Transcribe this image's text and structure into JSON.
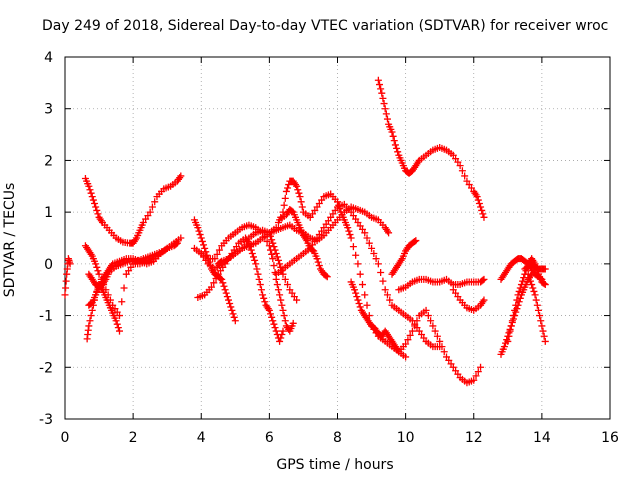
{
  "chart_data": {
    "type": "scatter",
    "title": "Day 249 of 2018, Sidereal Day-to-day VTEC variation (SDTVAR) for receiver wroc",
    "xlabel": "GPS time / hours",
    "ylabel": "SDTVAR / TECUs",
    "xlim": [
      0,
      16
    ],
    "ylim": [
      -3,
      4
    ],
    "xticks": [
      "0",
      "2",
      "4",
      "6",
      "8",
      "10",
      "12",
      "14",
      "16"
    ],
    "yticks": [
      "-3",
      "-2",
      "-1",
      "0",
      "1",
      "2",
      "3",
      "4"
    ],
    "grid": true,
    "marker": "+",
    "color": "#ff0000",
    "series": [
      {
        "x": [
          0.0,
          0.05,
          0.1,
          0.15
        ],
        "y": [
          -0.6,
          -0.2,
          0.1,
          0.0
        ]
      },
      {
        "x": [
          0.6,
          0.7,
          0.8,
          0.9,
          1.0,
          1.1,
          1.3,
          1.5,
          1.7,
          1.9,
          2.0,
          2.1,
          2.2,
          2.3,
          2.5,
          2.7,
          2.9,
          3.1,
          3.3,
          3.4
        ],
        "y": [
          1.65,
          1.5,
          1.3,
          1.1,
          0.9,
          0.8,
          0.65,
          0.5,
          0.42,
          0.4,
          0.4,
          0.5,
          0.65,
          0.8,
          1.0,
          1.3,
          1.45,
          1.5,
          1.6,
          1.7
        ]
      },
      {
        "x": [
          0.6,
          0.7,
          0.8,
          0.9,
          1.0,
          1.2,
          1.4,
          1.6,
          1.8,
          2.0,
          2.2,
          2.4,
          2.6,
          2.8,
          3.0,
          3.2,
          3.4
        ],
        "y": [
          0.35,
          0.25,
          0.15,
          0.0,
          -0.2,
          -0.5,
          -0.8,
          -1.0,
          -0.2,
          0.0,
          0.0,
          0.05,
          0.1,
          0.2,
          0.3,
          0.4,
          0.5
        ]
      },
      {
        "x": [
          0.65,
          0.7,
          0.8,
          0.9,
          1.0,
          1.1,
          1.2,
          1.3,
          1.4,
          1.5,
          1.6
        ],
        "y": [
          -1.45,
          -1.2,
          -0.9,
          -0.6,
          -0.4,
          -0.5,
          -0.65,
          -0.8,
          -0.95,
          -1.1,
          -1.3
        ]
      },
      {
        "x": [
          0.7,
          0.8,
          0.9,
          1.0,
          1.1,
          1.2,
          1.3,
          1.4,
          1.6,
          1.8,
          2.0,
          2.2,
          2.4,
          2.6,
          2.8,
          3.0,
          3.2,
          3.3
        ],
        "y": [
          -0.8,
          -0.75,
          -0.6,
          -0.45,
          -0.3,
          -0.2,
          -0.1,
          0.0,
          0.05,
          0.1,
          0.1,
          0.05,
          0.0,
          0.05,
          0.2,
          0.3,
          0.35,
          0.4
        ]
      },
      {
        "x": [
          0.7,
          0.8,
          0.9,
          1.0,
          1.1,
          1.2,
          1.3,
          1.5,
          1.7,
          1.9,
          2.1,
          2.3,
          2.5,
          2.7,
          2.9,
          3.0
        ],
        "y": [
          -0.2,
          -0.3,
          -0.4,
          -0.45,
          -0.4,
          -0.3,
          -0.15,
          -0.05,
          0.0,
          0.05,
          0.05,
          0.1,
          0.15,
          0.2,
          0.25,
          0.3
        ]
      },
      {
        "x": [
          3.8,
          3.9,
          4.0,
          4.1,
          4.2,
          4.3,
          4.4,
          4.5,
          4.6,
          4.7,
          4.8,
          4.9,
          5.0
        ],
        "y": [
          0.85,
          0.7,
          0.5,
          0.3,
          0.1,
          -0.1,
          -0.2,
          -0.25,
          -0.3,
          -0.5,
          -0.7,
          -0.9,
          -1.1
        ]
      },
      {
        "x": [
          3.8,
          4.0,
          4.2,
          4.4,
          4.6,
          4.8,
          5.0,
          5.2,
          5.4,
          5.6,
          5.8,
          6.0,
          6.1,
          6.2,
          6.3,
          6.4,
          6.6,
          6.8
        ],
        "y": [
          0.3,
          0.2,
          0.0,
          -0.1,
          0.0,
          0.1,
          0.2,
          0.3,
          0.5,
          0.6,
          0.65,
          0.6,
          0.4,
          0.2,
          0.0,
          -0.2,
          -0.5,
          -0.7
        ]
      },
      {
        "x": [
          3.9,
          4.1,
          4.3,
          4.5,
          4.7,
          4.9,
          5.1,
          5.3,
          5.4,
          5.5,
          5.6,
          5.7,
          5.8,
          5.9,
          6.0,
          6.1,
          6.2,
          6.3,
          6.4
        ],
        "y": [
          -0.65,
          -0.6,
          -0.45,
          -0.2,
          0.0,
          0.2,
          0.4,
          0.5,
          0.4,
          0.2,
          0.0,
          -0.3,
          -0.6,
          -0.8,
          -0.9,
          -1.1,
          -1.3,
          -1.5,
          -1.3
        ]
      },
      {
        "x": [
          4.0,
          4.2,
          4.4,
          4.6,
          4.8,
          5.0,
          5.2,
          5.4,
          5.6,
          5.8,
          6.0,
          6.1,
          6.2,
          6.3,
          6.4,
          6.5,
          6.6,
          6.7
        ],
        "y": [
          0.2,
          0.1,
          0.1,
          0.35,
          0.5,
          0.6,
          0.7,
          0.75,
          0.7,
          0.6,
          0.35,
          0.1,
          -0.3,
          -0.6,
          -0.9,
          -1.2,
          -1.3,
          -1.15
        ]
      },
      {
        "x": [
          4.5,
          4.6,
          4.8,
          5.0,
          5.2,
          5.4,
          5.6,
          5.8,
          6.0,
          6.2,
          6.4,
          6.6,
          6.8,
          7.0,
          7.2,
          7.4,
          7.6,
          7.8,
          8.0,
          8.2,
          8.4,
          8.6,
          8.8,
          9.0,
          9.2,
          9.4,
          9.5
        ],
        "y": [
          0.0,
          0.05,
          0.1,
          0.2,
          0.3,
          0.35,
          0.4,
          0.5,
          0.6,
          0.65,
          0.7,
          0.75,
          0.65,
          0.6,
          0.5,
          0.45,
          0.55,
          0.7,
          0.85,
          1.0,
          1.1,
          1.05,
          1.0,
          0.9,
          0.85,
          0.7,
          0.6
        ]
      },
      {
        "x": [
          6.0,
          6.2,
          6.4,
          6.5,
          6.6,
          6.7,
          6.8,
          6.9,
          7.0,
          7.2,
          7.4,
          7.6,
          7.8,
          8.0,
          8.1,
          8.2,
          8.3,
          8.4,
          8.6,
          8.8,
          9.0,
          9.2,
          9.4,
          9.6,
          9.8,
          10.0
        ],
        "y": [
          0.6,
          0.7,
          1.0,
          1.4,
          1.6,
          1.6,
          1.5,
          1.3,
          1.0,
          0.9,
          1.1,
          1.3,
          1.35,
          1.2,
          1.0,
          0.85,
          0.7,
          0.5,
          0.0,
          -0.6,
          -1.2,
          -1.4,
          -1.5,
          -1.6,
          -1.7,
          -1.8
        ]
      },
      {
        "x": [
          6.3,
          6.5,
          6.6,
          6.7,
          6.8,
          6.9,
          7.0,
          7.1,
          7.2,
          7.3,
          7.4,
          7.5,
          7.6,
          7.7
        ],
        "y": [
          0.85,
          0.95,
          1.05,
          1.0,
          0.85,
          0.7,
          0.55,
          0.45,
          0.3,
          0.25,
          0.1,
          -0.1,
          -0.2,
          -0.25
        ]
      },
      {
        "x": [
          6.2,
          6.4,
          6.6,
          6.8,
          7.0,
          7.2,
          7.4,
          7.6,
          7.8,
          8.0,
          8.2,
          8.4,
          8.6,
          8.8,
          9.0,
          9.2,
          9.4,
          9.6,
          9.8,
          10.0,
          10.2,
          10.4,
          10.6,
          10.8,
          11.0
        ],
        "y": [
          -0.2,
          -0.1,
          0.0,
          0.1,
          0.2,
          0.3,
          0.5,
          0.7,
          0.9,
          1.1,
          1.15,
          1.0,
          0.8,
          0.6,
          0.3,
          0.0,
          -0.5,
          -0.8,
          -0.9,
          -1.0,
          -1.1,
          -1.3,
          -1.5,
          -1.6,
          -1.6
        ]
      },
      {
        "x": [
          8.4,
          8.5,
          8.6,
          8.7,
          8.8,
          8.9,
          9.0,
          9.1,
          9.2,
          9.3,
          9.4,
          9.5,
          9.6,
          9.7,
          9.8,
          10.0,
          10.2,
          10.4,
          10.6,
          10.8,
          11.0,
          11.2,
          11.4,
          11.6,
          11.8,
          12.0,
          12.2
        ],
        "y": [
          -0.35,
          -0.5,
          -0.7,
          -0.9,
          -1.0,
          -1.1,
          -1.2,
          -1.25,
          -1.35,
          -1.4,
          -1.3,
          -1.4,
          -1.5,
          -1.6,
          -1.7,
          -1.55,
          -1.3,
          -1.0,
          -0.9,
          -1.2,
          -1.5,
          -1.8,
          -2.0,
          -2.2,
          -2.3,
          -2.25,
          -2.0
        ]
      },
      {
        "x": [
          9.2,
          9.3,
          9.4,
          9.5,
          9.6,
          9.7,
          9.8,
          9.9,
          10.0,
          10.1,
          10.2,
          10.3,
          10.4,
          10.6,
          10.8,
          11.0,
          11.2,
          11.4,
          11.6,
          11.8,
          12.0,
          12.1,
          12.2,
          12.3
        ],
        "y": [
          3.55,
          3.3,
          3.0,
          2.7,
          2.55,
          2.3,
          2.1,
          1.95,
          1.8,
          1.75,
          1.8,
          1.9,
          2.0,
          2.1,
          2.2,
          2.25,
          2.2,
          2.1,
          1.9,
          1.6,
          1.4,
          1.3,
          1.1,
          0.9
        ]
      },
      {
        "x": [
          9.6,
          9.7,
          9.8,
          9.9,
          10.0,
          10.1,
          10.2,
          10.3
        ],
        "y": [
          -0.2,
          -0.1,
          0.0,
          0.1,
          0.25,
          0.35,
          0.4,
          0.45
        ]
      },
      {
        "x": [
          9.8,
          10.0,
          10.2,
          10.4,
          10.6,
          10.8,
          11.0,
          11.2,
          11.4,
          11.6,
          11.8,
          12.0,
          12.2,
          12.3
        ],
        "y": [
          -0.5,
          -0.45,
          -0.35,
          -0.3,
          -0.3,
          -0.35,
          -0.35,
          -0.3,
          -0.4,
          -0.4,
          -0.35,
          -0.35,
          -0.35,
          -0.3
        ]
      },
      {
        "x": [
          11.4,
          11.6,
          11.8,
          12.0,
          12.2,
          12.3
        ],
        "y": [
          -0.5,
          -0.7,
          -0.85,
          -0.9,
          -0.8,
          -0.7
        ]
      },
      {
        "x": [
          12.8,
          12.9,
          13.0,
          13.1,
          13.2,
          13.3,
          13.4,
          13.5,
          13.6,
          13.7,
          13.8,
          13.9,
          14.0
        ],
        "y": [
          -0.3,
          -0.2,
          -0.1,
          0.0,
          0.05,
          0.1,
          0.1,
          0.05,
          0.0,
          -0.1,
          -0.2,
          -0.25,
          -0.3
        ]
      },
      {
        "x": [
          12.8,
          12.9,
          13.0,
          13.1,
          13.2,
          13.3,
          13.4,
          13.5,
          13.6,
          13.7
        ],
        "y": [
          -1.75,
          -1.6,
          -1.4,
          -1.2,
          -1.0,
          -0.8,
          -0.6,
          -0.45,
          -0.3,
          -0.2
        ]
      },
      {
        "x": [
          13.0,
          13.1,
          13.2,
          13.3,
          13.4,
          13.5,
          13.6,
          13.7,
          13.8,
          13.9,
          14.0,
          14.1
        ],
        "y": [
          -1.5,
          -1.2,
          -0.9,
          -0.6,
          -0.4,
          -0.2,
          0.0,
          0.1,
          0.0,
          -0.2,
          -0.35,
          -0.4
        ]
      },
      {
        "x": [
          13.5,
          13.6,
          13.7,
          13.8,
          13.9,
          14.0,
          14.1
        ],
        "y": [
          -0.1,
          -0.05,
          0.0,
          -0.05,
          -0.1,
          -0.1,
          -0.1
        ]
      },
      {
        "x": [
          13.6,
          13.7,
          13.8,
          13.9,
          14.0,
          14.1
        ],
        "y": [
          -0.2,
          -0.4,
          -0.6,
          -0.9,
          -1.2,
          -1.5
        ]
      }
    ]
  }
}
